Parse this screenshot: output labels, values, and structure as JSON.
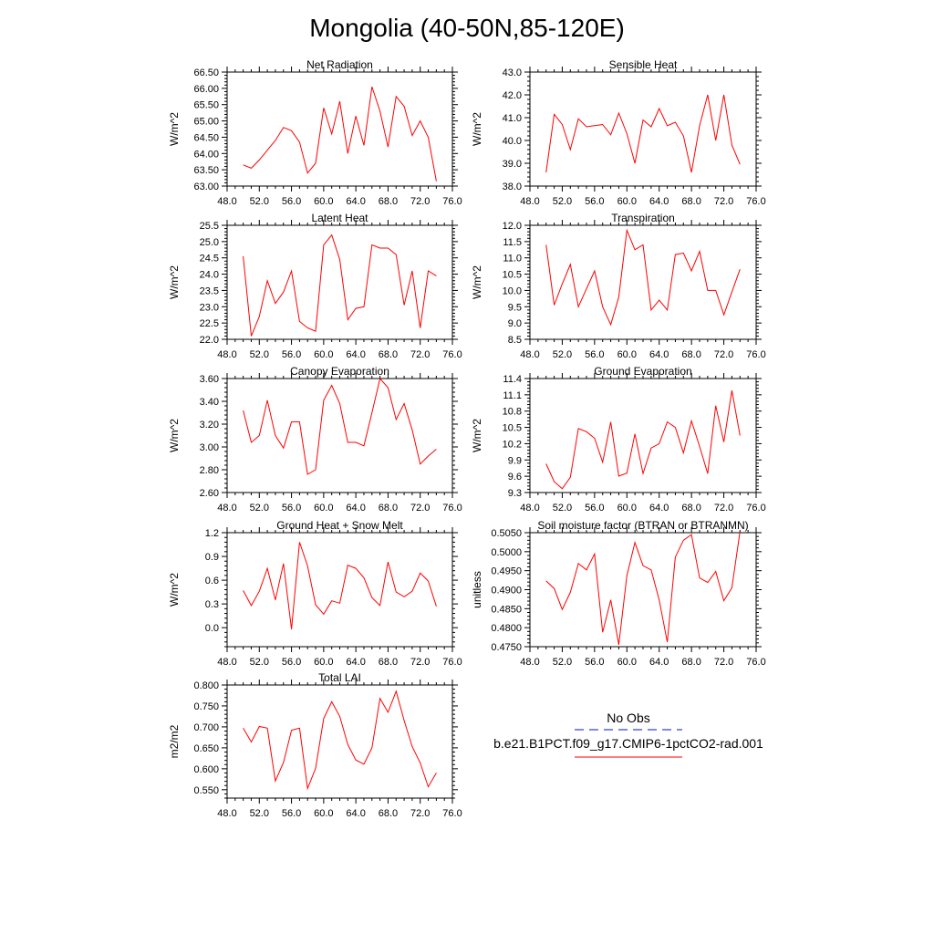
{
  "figure_title": "Mongolia (40-50N,85-120E)",
  "legend": {
    "obs_label": "No Obs",
    "model_label": "b.e21.B1PCT.f09_g17.CMIP6-1pctCO2-rad.001",
    "obs_color": "#3344cc",
    "model_color": "#ff0000"
  },
  "chart_data": [
    {
      "type": "line",
      "title": "Net Radiation",
      "ylabel": "W/m^2",
      "xlim": [
        48,
        76
      ],
      "ylim": [
        63.0,
        66.5
      ],
      "xticks": [
        48,
        52,
        56,
        60,
        64,
        68,
        72,
        76
      ],
      "xtick_labels": [
        "48.0",
        "52.0",
        "56.0",
        "60.0",
        "64.0",
        "68.0",
        "72.0",
        "76.0"
      ],
      "yticks": [
        63.0,
        63.5,
        64.0,
        64.5,
        65.0,
        65.5,
        66.0,
        66.5
      ],
      "ytick_labels": [
        "63.00",
        "63.50",
        "64.00",
        "64.50",
        "65.00",
        "65.50",
        "66.00",
        "66.50"
      ],
      "series": [
        {
          "color": "#ff0000",
          "x": [
            50,
            51,
            52,
            53,
            54,
            55,
            56,
            57,
            58,
            59,
            60,
            61,
            62,
            63,
            64,
            65,
            66,
            67,
            68,
            69,
            70,
            71,
            72,
            73,
            74
          ],
          "values": [
            63.65,
            63.55,
            63.8,
            64.1,
            64.4,
            64.8,
            64.7,
            64.35,
            63.4,
            63.7,
            65.4,
            64.6,
            65.6,
            64.0,
            65.15,
            64.25,
            66.05,
            65.3,
            64.2,
            65.75,
            65.45,
            64.55,
            65.0,
            64.5,
            63.15
          ]
        }
      ]
    },
    {
      "type": "line",
      "title": "Sensible Heat",
      "ylabel": "W/m^2",
      "xlim": [
        48,
        76
      ],
      "ylim": [
        38.0,
        43.0
      ],
      "xticks": [
        48,
        52,
        56,
        60,
        64,
        68,
        72,
        76
      ],
      "xtick_labels": [
        "48.0",
        "52.0",
        "56.0",
        "60.0",
        "64.0",
        "68.0",
        "72.0",
        "76.0"
      ],
      "yticks": [
        38.0,
        39.0,
        40.0,
        41.0,
        42.0,
        43.0
      ],
      "ytick_labels": [
        "38.0",
        "39.0",
        "40.0",
        "41.0",
        "42.0",
        "43.0"
      ],
      "series": [
        {
          "color": "#ff0000",
          "x": [
            50,
            51,
            52,
            53,
            54,
            55,
            56,
            57,
            58,
            59,
            60,
            61,
            62,
            63,
            64,
            65,
            66,
            67,
            68,
            69,
            70,
            71,
            72,
            73,
            74
          ],
          "values": [
            38.6,
            41.15,
            40.7,
            39.6,
            40.95,
            40.6,
            40.65,
            40.7,
            40.25,
            41.2,
            40.3,
            39.0,
            40.9,
            40.6,
            41.4,
            40.65,
            40.8,
            40.2,
            38.6,
            40.65,
            42.0,
            40.0,
            42.0,
            39.8,
            38.95
          ]
        }
      ]
    },
    {
      "type": "line",
      "title": "Latent Heat",
      "ylabel": "W/m^2",
      "xlim": [
        48,
        76
      ],
      "ylim": [
        22.0,
        25.5
      ],
      "xticks": [
        48,
        52,
        56,
        60,
        64,
        68,
        72,
        76
      ],
      "xtick_labels": [
        "48.0",
        "52.0",
        "56.0",
        "60.0",
        "64.0",
        "68.0",
        "72.0",
        "76.0"
      ],
      "yticks": [
        22.0,
        22.5,
        23.0,
        23.5,
        24.0,
        24.5,
        25.0,
        25.5
      ],
      "ytick_labels": [
        "22.0",
        "22.5",
        "23.0",
        "23.5",
        "24.0",
        "24.5",
        "25.0",
        "25.5"
      ],
      "series": [
        {
          "color": "#ff0000",
          "x": [
            50,
            51,
            52,
            53,
            54,
            55,
            56,
            57,
            58,
            59,
            60,
            61,
            62,
            63,
            64,
            65,
            66,
            67,
            68,
            69,
            70,
            71,
            72,
            73,
            74
          ],
          "values": [
            24.55,
            22.1,
            22.7,
            23.8,
            23.1,
            23.45,
            24.1,
            22.55,
            22.35,
            22.25,
            24.9,
            25.2,
            24.45,
            22.6,
            22.95,
            23.0,
            24.9,
            24.8,
            24.8,
            24.6,
            23.05,
            24.1,
            22.35,
            24.1,
            23.95
          ]
        }
      ]
    },
    {
      "type": "line",
      "title": "Transpiration",
      "ylabel": "W/m^2",
      "xlim": [
        48,
        76
      ],
      "ylim": [
        8.5,
        12.0
      ],
      "xticks": [
        48,
        52,
        56,
        60,
        64,
        68,
        72,
        76
      ],
      "xtick_labels": [
        "48.0",
        "52.0",
        "56.0",
        "60.0",
        "64.0",
        "68.0",
        "72.0",
        "76.0"
      ],
      "yticks": [
        8.5,
        9.0,
        9.5,
        10.0,
        10.5,
        11.0,
        11.5,
        12.0
      ],
      "ytick_labels": [
        "8.5",
        "9.0",
        "9.5",
        "10.0",
        "10.5",
        "11.0",
        "11.5",
        "12.0"
      ],
      "series": [
        {
          "color": "#ff0000",
          "x": [
            50,
            51,
            52,
            53,
            54,
            55,
            56,
            57,
            58,
            59,
            60,
            61,
            62,
            63,
            64,
            65,
            66,
            67,
            68,
            69,
            70,
            71,
            72,
            73,
            74
          ],
          "values": [
            11.4,
            9.55,
            10.2,
            10.8,
            9.5,
            10.05,
            10.6,
            9.5,
            8.95,
            9.8,
            11.85,
            11.25,
            11.4,
            9.4,
            9.7,
            9.4,
            11.1,
            11.15,
            10.6,
            11.2,
            10.0,
            10.0,
            9.25,
            9.95,
            10.65
          ]
        }
      ]
    },
    {
      "type": "line",
      "title": "Canopy Evaporation",
      "ylabel": "W/m^2",
      "xlim": [
        48,
        76
      ],
      "ylim": [
        2.6,
        3.6
      ],
      "xticks": [
        48,
        52,
        56,
        60,
        64,
        68,
        72,
        76
      ],
      "xtick_labels": [
        "48.0",
        "52.0",
        "56.0",
        "60.0",
        "64.0",
        "68.0",
        "72.0",
        "76.0"
      ],
      "yticks": [
        2.6,
        2.8,
        3.0,
        3.2,
        3.4,
        3.6
      ],
      "ytick_labels": [
        "2.60",
        "2.80",
        "3.00",
        "3.20",
        "3.40",
        "3.60"
      ],
      "series": [
        {
          "color": "#ff0000",
          "x": [
            50,
            51,
            52,
            53,
            54,
            55,
            56,
            57,
            58,
            59,
            60,
            61,
            62,
            63,
            64,
            65,
            66,
            67,
            68,
            69,
            70,
            71,
            72,
            73,
            74
          ],
          "values": [
            3.32,
            3.04,
            3.1,
            3.41,
            3.1,
            2.99,
            3.22,
            3.22,
            2.76,
            2.8,
            3.41,
            3.54,
            3.38,
            3.04,
            3.04,
            3.01,
            3.3,
            3.6,
            3.52,
            3.24,
            3.38,
            3.15,
            2.85,
            2.92,
            2.98
          ]
        }
      ]
    },
    {
      "type": "line",
      "title": "Ground Evaporation",
      "ylabel": "W/m^2",
      "xlim": [
        48,
        76
      ],
      "ylim": [
        9.3,
        11.4
      ],
      "xticks": [
        48,
        52,
        56,
        60,
        64,
        68,
        72,
        76
      ],
      "xtick_labels": [
        "48.0",
        "52.0",
        "56.0",
        "60.0",
        "64.0",
        "68.0",
        "72.0",
        "76.0"
      ],
      "yticks": [
        9.3,
        9.6,
        9.9,
        10.2,
        10.5,
        10.8,
        11.1,
        11.4
      ],
      "ytick_labels": [
        "9.3",
        "9.6",
        "9.9",
        "10.2",
        "10.5",
        "10.8",
        "11.1",
        "11.4"
      ],
      "series": [
        {
          "color": "#ff0000",
          "x": [
            50,
            51,
            52,
            53,
            54,
            55,
            56,
            57,
            58,
            59,
            60,
            61,
            62,
            63,
            64,
            65,
            66,
            67,
            68,
            69,
            70,
            71,
            72,
            73,
            74
          ],
          "values": [
            9.83,
            9.5,
            9.37,
            9.58,
            10.48,
            10.42,
            10.3,
            9.86,
            10.6,
            9.6,
            9.66,
            10.38,
            9.65,
            10.12,
            10.2,
            10.6,
            10.5,
            10.03,
            10.62,
            10.15,
            9.65,
            10.9,
            10.23,
            11.18,
            10.35
          ]
        }
      ]
    },
    {
      "type": "line",
      "title": "Ground Heat + Snow Melt",
      "ylabel": "W/m^2",
      "xlim": [
        48,
        76
      ],
      "ylim": [
        -0.24,
        1.2
      ],
      "xticks": [
        48,
        52,
        56,
        60,
        64,
        68,
        72,
        76
      ],
      "xtick_labels": [
        "48.0",
        "52.0",
        "56.0",
        "60.0",
        "64.0",
        "68.0",
        "72.0",
        "76.0"
      ],
      "yticks": [
        0.0,
        0.3,
        0.6,
        0.9,
        1.2
      ],
      "ytick_labels": [
        "0.0",
        "0.3",
        "0.6",
        "0.9",
        "1.2"
      ],
      "series": [
        {
          "color": "#ff0000",
          "x": [
            50,
            51,
            52,
            53,
            54,
            55,
            56,
            57,
            58,
            59,
            60,
            61,
            62,
            63,
            64,
            65,
            66,
            67,
            68,
            69,
            70,
            71,
            72,
            73,
            74
          ],
          "values": [
            0.47,
            0.28,
            0.46,
            0.75,
            0.35,
            0.81,
            -0.02,
            1.08,
            0.78,
            0.29,
            0.17,
            0.34,
            0.31,
            0.79,
            0.75,
            0.63,
            0.38,
            0.28,
            0.83,
            0.45,
            0.39,
            0.46,
            0.69,
            0.59,
            0.27
          ]
        }
      ]
    },
    {
      "type": "line",
      "title": "Soil moisture factor (BTRAN or BTRANMN)",
      "ylabel": "unitless",
      "xlim": [
        48,
        76
      ],
      "ylim": [
        0.475,
        0.505
      ],
      "xticks": [
        48,
        52,
        56,
        60,
        64,
        68,
        72,
        76
      ],
      "xtick_labels": [
        "48.0",
        "52.0",
        "56.0",
        "60.0",
        "64.0",
        "68.0",
        "72.0",
        "76.0"
      ],
      "yticks": [
        0.475,
        0.48,
        0.485,
        0.49,
        0.495,
        0.5,
        0.505
      ],
      "ytick_labels": [
        "0.4750",
        "0.4800",
        "0.4850",
        "0.4900",
        "0.4950",
        "0.5000",
        "0.5050"
      ],
      "series": [
        {
          "color": "#ff0000",
          "x": [
            50,
            51,
            52,
            53,
            54,
            55,
            56,
            57,
            58,
            59,
            60,
            61,
            62,
            63,
            64,
            65,
            66,
            67,
            68,
            69,
            70,
            71,
            72,
            73,
            74
          ],
          "values": [
            0.4923,
            0.4903,
            0.4848,
            0.4893,
            0.4969,
            0.4952,
            0.4994,
            0.4788,
            0.4873,
            0.4755,
            0.4937,
            0.5024,
            0.4963,
            0.4952,
            0.4873,
            0.4762,
            0.4986,
            0.503,
            0.5045,
            0.4931,
            0.4919,
            0.4948,
            0.4871,
            0.4905,
            0.5053
          ]
        }
      ]
    },
    {
      "type": "line",
      "title": "Total LAI",
      "ylabel": "m2/m2",
      "xlim": [
        48,
        76
      ],
      "ylim": [
        0.53,
        0.8
      ],
      "xticks": [
        48,
        52,
        56,
        60,
        64,
        68,
        72,
        76
      ],
      "xtick_labels": [
        "48.0",
        "52.0",
        "56.0",
        "60.0",
        "64.0",
        "68.0",
        "72.0",
        "76.0"
      ],
      "yticks": [
        0.55,
        0.6,
        0.65,
        0.7,
        0.75,
        0.8
      ],
      "ytick_labels": [
        "0.550",
        "0.600",
        "0.650",
        "0.700",
        "0.750",
        "0.800"
      ],
      "series": [
        {
          "color": "#ff0000",
          "x": [
            50,
            51,
            52,
            53,
            54,
            55,
            56,
            57,
            58,
            59,
            60,
            61,
            62,
            63,
            64,
            65,
            66,
            67,
            68,
            69,
            70,
            71,
            72,
            73,
            74
          ],
          "values": [
            0.697,
            0.664,
            0.701,
            0.697,
            0.571,
            0.615,
            0.692,
            0.697,
            0.553,
            0.601,
            0.72,
            0.76,
            0.725,
            0.658,
            0.621,
            0.611,
            0.65,
            0.768,
            0.735,
            0.785,
            0.715,
            0.653,
            0.614,
            0.557,
            0.59
          ]
        }
      ]
    }
  ]
}
